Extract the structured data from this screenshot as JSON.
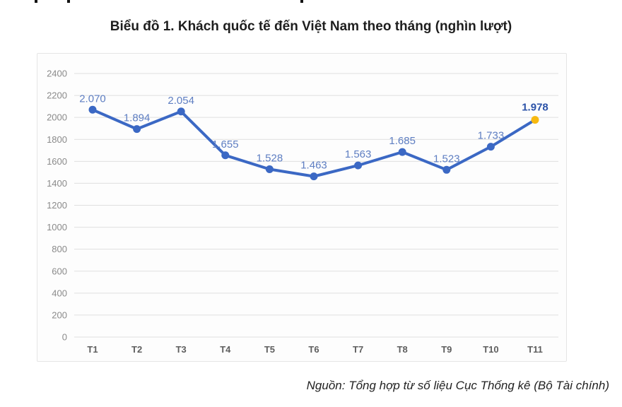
{
  "page": {
    "title": "Biểu đồ 1. Khách quốc tế đến Việt Nam theo tháng (nghìn lượt)",
    "source": "Nguồn: Tổng hợp từ số liệu Cục Thống kê (Bộ Tài chính)"
  },
  "chart_data": {
    "type": "line",
    "title": "Biểu đồ 1. Khách quốc tế đến Việt Nam theo tháng (nghìn lượt)",
    "categories": [
      "T1",
      "T2",
      "T3",
      "T4",
      "T5",
      "T6",
      "T7",
      "T8",
      "T9",
      "T10",
      "T11"
    ],
    "values": [
      2070,
      1894,
      2054,
      1655,
      1528,
      1463,
      1563,
      1685,
      1523,
      1733,
      1978
    ],
    "point_labels": [
      "2.070",
      "1.894",
      "2.054",
      "1.655",
      "1.528",
      "1.463",
      "1.563",
      "1.685",
      "1.523",
      "1.733",
      "1.978"
    ],
    "xlabel": "",
    "ylabel": "",
    "ylim": [
      0,
      2400
    ],
    "ytick_step": 200,
    "grid": true,
    "legend": false,
    "highlight_last_point": true,
    "colors": {
      "line": "#3b68c4",
      "marker": "#3b68c4",
      "last_marker": "#f7b910",
      "point_label": "#5e7ec2",
      "last_point_label": "#2b52a8",
      "axis_label": "#8a8a8a",
      "category_label": "#5e5e5e",
      "gridline": "#dfdfdf"
    }
  }
}
